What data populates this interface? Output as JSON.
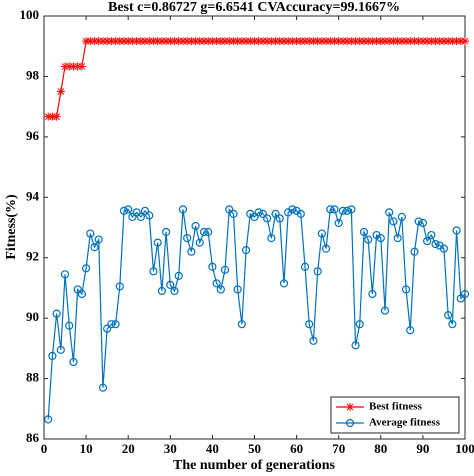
{
  "chart_data": {
    "type": "line",
    "title": "Best c=0.86727 g=6.6541 CVAccuracy=99.1667%",
    "xlabel": "The number of generations",
    "ylabel": "Fitness(%)",
    "x": [
      1,
      2,
      3,
      4,
      5,
      6,
      7,
      8,
      9,
      10,
      11,
      12,
      13,
      14,
      15,
      16,
      17,
      18,
      19,
      20,
      21,
      22,
      23,
      24,
      25,
      26,
      27,
      28,
      29,
      30,
      31,
      32,
      33,
      34,
      35,
      36,
      37,
      38,
      39,
      40,
      41,
      42,
      43,
      44,
      45,
      46,
      47,
      48,
      49,
      50,
      51,
      52,
      53,
      54,
      55,
      56,
      57,
      58,
      59,
      60,
      61,
      62,
      63,
      64,
      65,
      66,
      67,
      68,
      69,
      70,
      71,
      72,
      73,
      74,
      75,
      76,
      77,
      78,
      79,
      80,
      81,
      82,
      83,
      84,
      85,
      86,
      87,
      88,
      89,
      90,
      91,
      92,
      93,
      94,
      95,
      96,
      97,
      98,
      99,
      100
    ],
    "series": [
      {
        "name": "Best fitness",
        "color": "#ff0000",
        "marker": "asterisk",
        "values": [
          96.67,
          96.67,
          96.67,
          97.5,
          98.33,
          98.33,
          98.33,
          98.33,
          98.33,
          99.17,
          99.17,
          99.17,
          99.17,
          99.17,
          99.17,
          99.17,
          99.17,
          99.17,
          99.17,
          99.17,
          99.17,
          99.17,
          99.17,
          99.17,
          99.17,
          99.17,
          99.17,
          99.17,
          99.17,
          99.17,
          99.17,
          99.17,
          99.17,
          99.17,
          99.17,
          99.17,
          99.17,
          99.17,
          99.17,
          99.17,
          99.17,
          99.17,
          99.17,
          99.17,
          99.17,
          99.17,
          99.17,
          99.17,
          99.17,
          99.17,
          99.17,
          99.17,
          99.17,
          99.17,
          99.17,
          99.17,
          99.17,
          99.17,
          99.17,
          99.17,
          99.17,
          99.17,
          99.17,
          99.17,
          99.17,
          99.17,
          99.17,
          99.17,
          99.17,
          99.17,
          99.17,
          99.17,
          99.17,
          99.17,
          99.17,
          99.17,
          99.17,
          99.17,
          99.17,
          99.17,
          99.17,
          99.17,
          99.17,
          99.17,
          99.17,
          99.17,
          99.17,
          99.17,
          99.17,
          99.17,
          99.17,
          99.17,
          99.17,
          99.17,
          99.17,
          99.17,
          99.17,
          99.17,
          99.17,
          99.17
        ]
      },
      {
        "name": "Average fitness",
        "color": "#0072bd",
        "marker": "circle",
        "values": [
          86.65,
          88.75,
          90.15,
          88.95,
          91.45,
          89.75,
          88.55,
          90.95,
          90.8,
          91.65,
          92.8,
          92.35,
          92.6,
          87.7,
          89.65,
          89.8,
          89.8,
          91.05,
          93.55,
          93.6,
          93.35,
          93.5,
          93.35,
          93.55,
          93.4,
          91.55,
          92.5,
          90.9,
          92.85,
          91.1,
          90.9,
          91.4,
          93.6,
          92.65,
          92.2,
          93.05,
          92.5,
          92.85,
          92.85,
          91.7,
          91.15,
          90.95,
          91.6,
          93.6,
          93.45,
          90.95,
          89.8,
          92.25,
          93.45,
          93.35,
          93.5,
          93.45,
          93.3,
          92.65,
          93.45,
          93.3,
          91.15,
          93.5,
          93.6,
          93.55,
          93.45,
          91.7,
          89.8,
          89.25,
          91.55,
          92.8,
          92.3,
          93.6,
          93.6,
          93.15,
          93.55,
          93.55,
          93.6,
          89.1,
          89.8,
          92.85,
          92.6,
          90.8,
          92.75,
          92.65,
          90.25,
          93.5,
          93.2,
          92.65,
          93.35,
          90.95,
          89.6,
          92.2,
          93.2,
          93.15,
          92.55,
          92.75,
          92.45,
          92.4,
          92.3,
          90.1,
          89.8,
          92.9,
          90.65,
          90.8
        ]
      }
    ],
    "xlim": [
      0,
      100
    ],
    "xticks": [
      0,
      10,
      20,
      30,
      40,
      50,
      60,
      70,
      80,
      90,
      100
    ],
    "ylim": [
      86,
      100
    ],
    "yticks": [
      86,
      88,
      90,
      92,
      94,
      96,
      98,
      100
    ],
    "grid": false,
    "legend": "lower right"
  }
}
